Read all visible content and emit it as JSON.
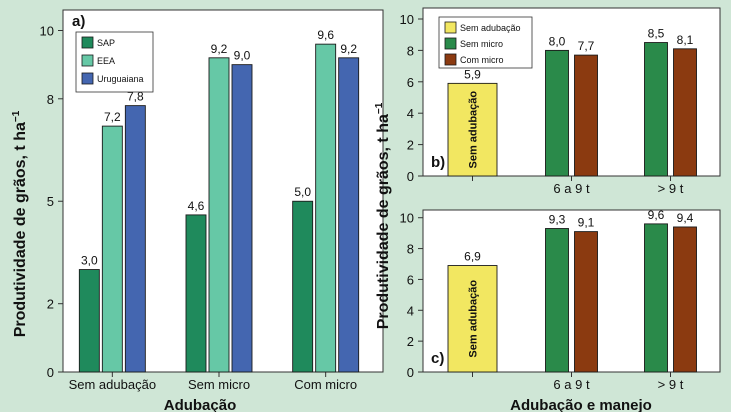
{
  "colors": {
    "background": "#cfe6d6",
    "plot_background": "#ffffff",
    "sap": "#1f8a5c",
    "eea": "#66c8a6",
    "uruguaiana": "#4466b0",
    "sem_adubacao": "#f2e761",
    "sem_micro": "#2a8a4a",
    "com_micro": "#8b3a10"
  },
  "shared": {
    "ylabel_left": "Produtividade de grãos, t ha",
    "ylabel_right": "Produtividade de grãos, t ha",
    "ylabel_exponent": "−1",
    "xlabel_left": "Adubação",
    "xlabel_right": "Adubação e manejo"
  },
  "chart_data": [
    {
      "type": "bar",
      "panel_label": "a)",
      "categories": [
        "Sem adubação",
        "Sem micro",
        "Com micro"
      ],
      "series": [
        {
          "name": "SAP",
          "color": "sap",
          "values": [
            3.0,
            4.6,
            5.0
          ],
          "labels": [
            "3,0",
            "4,6",
            "5,0"
          ]
        },
        {
          "name": "EEA",
          "color": "eea",
          "values": [
            7.2,
            9.2,
            9.6
          ],
          "labels": [
            "7,2",
            "9,2",
            "9,6"
          ]
        },
        {
          "name": "Uruguaiana",
          "color": "uruguaiana",
          "values": [
            7.8,
            9.0,
            9.2
          ],
          "labels": [
            "7,8",
            "9,0",
            "9,2"
          ]
        }
      ],
      "yticks": [
        "0",
        "2",
        "5",
        "8",
        "10"
      ],
      "ylim": [
        0,
        10.6
      ],
      "legend_position": "top-left",
      "xlabel": "Adubação"
    },
    {
      "type": "bar",
      "panel_label": "b)",
      "categories": [
        "",
        "6 a 9 t",
        "> 9 t"
      ],
      "series": [
        {
          "name": "Sem adubação",
          "color": "sem_adubacao",
          "values": [
            5.9,
            null,
            null
          ],
          "labels": [
            "5,9",
            "",
            ""
          ],
          "bar_text": "Sem adubação"
        },
        {
          "name": "Sem micro",
          "color": "sem_micro",
          "values": [
            null,
            8.0,
            8.5
          ],
          "labels": [
            "",
            "8,0",
            "8,5"
          ]
        },
        {
          "name": "Com micro",
          "color": "com_micro",
          "values": [
            null,
            7.7,
            8.1
          ],
          "labels": [
            "",
            "7,7",
            "8,1"
          ]
        }
      ],
      "yticks": [
        "0",
        "2",
        "4",
        "6",
        "8",
        "10"
      ],
      "ylim": [
        0,
        10.7
      ],
      "legend_position": "top-left"
    },
    {
      "type": "bar",
      "panel_label": "c)",
      "categories": [
        "",
        "6 a 9 t",
        "> 9 t"
      ],
      "series": [
        {
          "name": "Sem adubação",
          "color": "sem_adubacao",
          "values": [
            6.9,
            null,
            null
          ],
          "labels": [
            "6,9",
            "",
            ""
          ],
          "bar_text": "Sem adubação"
        },
        {
          "name": "Sem micro",
          "color": "sem_micro",
          "values": [
            null,
            9.3,
            9.6
          ],
          "labels": [
            "",
            "9,3",
            "9,6"
          ]
        },
        {
          "name": "Com micro",
          "color": "com_micro",
          "values": [
            null,
            9.1,
            9.4
          ],
          "labels": [
            "",
            "9,1",
            "9,4"
          ]
        }
      ],
      "yticks": [
        "0",
        "2",
        "4",
        "6",
        "8",
        "10"
      ],
      "ylim": [
        0,
        10.5
      ],
      "xlabel": "Adubação e manejo"
    }
  ]
}
